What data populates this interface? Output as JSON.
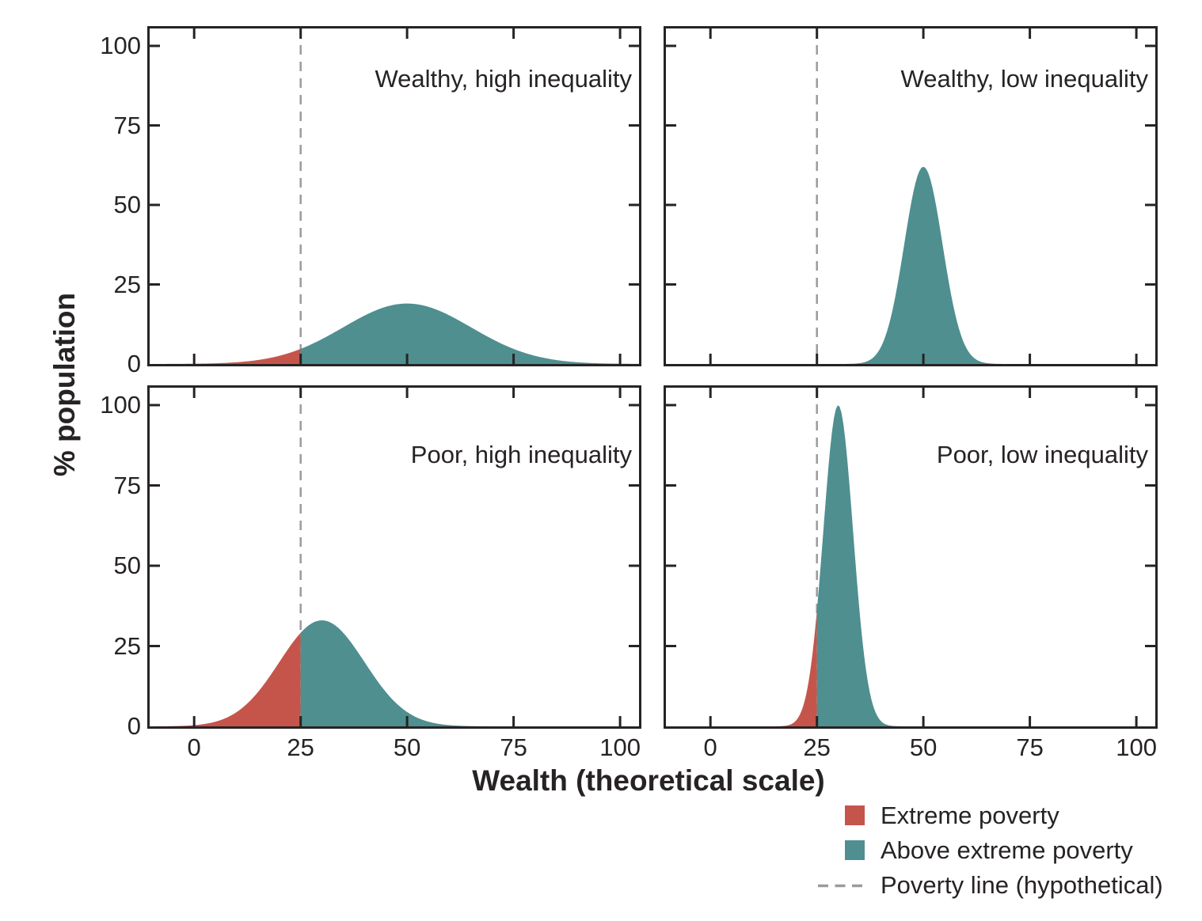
{
  "figure": {
    "x_axis_label": "Wealth (theoretical scale)",
    "y_axis_label": "% population",
    "x_ticks": [
      0,
      25,
      50,
      75,
      100
    ],
    "y_ticks": [
      0,
      25,
      50,
      75,
      100
    ],
    "poverty_line_x": 25,
    "colors": {
      "extreme_poverty": "#C5554B",
      "above_extreme_poverty": "#4F8F8F",
      "poverty_line": "#9B9B9B",
      "axis": "#272325"
    }
  },
  "legend": {
    "items": [
      {
        "label": "Extreme poverty",
        "swatch": "square",
        "color": "#C5554B"
      },
      {
        "label": "Above extreme poverty",
        "swatch": "square",
        "color": "#4F8F8F"
      },
      {
        "label": "Poverty line (hypothetical)",
        "swatch": "dashed-line",
        "color": "#9B9B9B"
      }
    ]
  },
  "chart_data": [
    {
      "type": "area",
      "title": "Wealthy, high inequality",
      "xlabel": "Wealth (theoretical scale)",
      "ylabel": "% population",
      "xlim": [
        -11,
        105
      ],
      "ylim": [
        0,
        105.5
      ],
      "x_ticks": [
        0,
        25,
        50,
        75,
        100
      ],
      "y_ticks": [
        0,
        25,
        50,
        75,
        100
      ],
      "poverty_line_x": 25,
      "grid": false,
      "distribution": {
        "shape": "gaussian",
        "mean": 50,
        "sd": 15,
        "peak_pct": 19
      },
      "regions": [
        {
          "name": "Extreme poverty",
          "x_range": [
            -11,
            25
          ],
          "color": "#C5554B"
        },
        {
          "name": "Above extreme poverty",
          "x_range": [
            25,
            105
          ],
          "color": "#4F8F8F"
        }
      ]
    },
    {
      "type": "area",
      "title": "Wealthy, low inequality",
      "xlabel": "Wealth (theoretical scale)",
      "ylabel": "% population",
      "xlim": [
        -11,
        105
      ],
      "ylim": [
        0,
        105.5
      ],
      "x_ticks": [
        0,
        25,
        50,
        75,
        100
      ],
      "y_ticks": [
        0,
        25,
        50,
        75,
        100
      ],
      "poverty_line_x": 25,
      "grid": false,
      "distribution": {
        "shape": "gaussian",
        "mean": 50,
        "sd": 4.5,
        "peak_pct": 62
      },
      "regions": [
        {
          "name": "Extreme poverty",
          "x_range": [
            -11,
            25
          ],
          "color": "#C5554B"
        },
        {
          "name": "Above extreme poverty",
          "x_range": [
            25,
            105
          ],
          "color": "#4F8F8F"
        }
      ]
    },
    {
      "type": "area",
      "title": "Poor, high inequality",
      "xlabel": "Wealth (theoretical scale)",
      "ylabel": "% population",
      "xlim": [
        -11,
        105
      ],
      "ylim": [
        0,
        105.5
      ],
      "x_ticks": [
        0,
        25,
        50,
        75,
        100
      ],
      "y_ticks": [
        0,
        25,
        50,
        75,
        100
      ],
      "poverty_line_x": 25,
      "grid": false,
      "distribution": {
        "shape": "gaussian",
        "mean": 30,
        "sd": 10,
        "peak_pct": 33
      },
      "regions": [
        {
          "name": "Extreme poverty",
          "x_range": [
            -11,
            25
          ],
          "color": "#C5554B"
        },
        {
          "name": "Above extreme poverty",
          "x_range": [
            25,
            105
          ],
          "color": "#4F8F8F"
        }
      ]
    },
    {
      "type": "area",
      "title": "Poor, low inequality",
      "xlabel": "Wealth (theoretical scale)",
      "ylabel": "% population",
      "xlim": [
        -11,
        105
      ],
      "ylim": [
        0,
        105.5
      ],
      "x_ticks": [
        0,
        25,
        50,
        75,
        100
      ],
      "y_ticks": [
        0,
        25,
        50,
        75,
        100
      ],
      "poverty_line_x": 25,
      "grid": false,
      "distribution": {
        "shape": "gaussian",
        "mean": 30,
        "sd": 3.5,
        "peak_pct": 100
      },
      "regions": [
        {
          "name": "Extreme poverty",
          "x_range": [
            -11,
            25
          ],
          "color": "#C5554B"
        },
        {
          "name": "Above extreme poverty",
          "x_range": [
            25,
            105
          ],
          "color": "#4F8F8F"
        }
      ]
    }
  ]
}
